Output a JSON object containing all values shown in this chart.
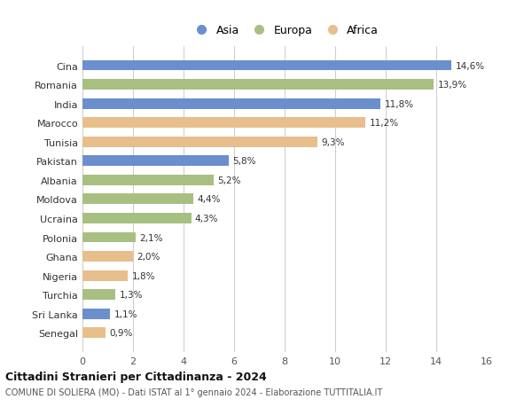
{
  "countries": [
    "Cina",
    "Romania",
    "India",
    "Marocco",
    "Tunisia",
    "Pakistan",
    "Albania",
    "Moldova",
    "Ucraina",
    "Polonia",
    "Ghana",
    "Nigeria",
    "Turchia",
    "Sri Lanka",
    "Senegal"
  ],
  "values": [
    14.6,
    13.9,
    11.8,
    11.2,
    9.3,
    5.8,
    5.2,
    4.4,
    4.3,
    2.1,
    2.0,
    1.8,
    1.3,
    1.1,
    0.9
  ],
  "labels": [
    "14,6%",
    "13,9%",
    "11,8%",
    "11,2%",
    "9,3%",
    "5,8%",
    "5,2%",
    "4,4%",
    "4,3%",
    "2,1%",
    "2,0%",
    "1,8%",
    "1,3%",
    "1,1%",
    "0,9%"
  ],
  "continents": [
    "Asia",
    "Europa",
    "Asia",
    "Africa",
    "Africa",
    "Asia",
    "Europa",
    "Europa",
    "Europa",
    "Europa",
    "Africa",
    "Africa",
    "Europa",
    "Asia",
    "Africa"
  ],
  "colors": {
    "Asia": "#6B8FCE",
    "Europa": "#A8BF82",
    "Africa": "#E8BE8C"
  },
  "title": "Cittadini Stranieri per Cittadinanza - 2024",
  "subtitle": "COMUNE DI SOLIERA (MO) - Dati ISTAT al 1° gennaio 2024 - Elaborazione TUTTITALIA.IT",
  "xlim": [
    0,
    16
  ],
  "xticks": [
    0,
    2,
    4,
    6,
    8,
    10,
    12,
    14,
    16
  ],
  "background_color": "#ffffff",
  "grid_color": "#cccccc",
  "bar_height": 0.55
}
